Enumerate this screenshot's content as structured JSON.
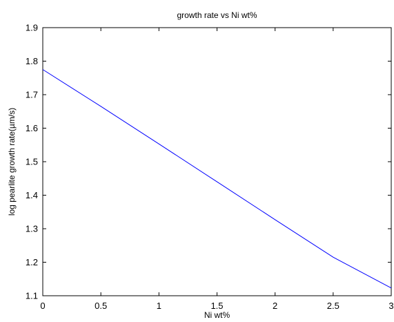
{
  "chart_data": {
    "type": "line",
    "title": "growth rate vs Ni wt%",
    "xlabel": "Ni wt%",
    "ylabel": "log pearlite growth rate(µm/s)",
    "xlim": [
      0,
      3
    ],
    "ylim": [
      1.1,
      1.9
    ],
    "x_ticks": [
      0,
      0.5,
      1,
      1.5,
      2,
      2.5,
      3
    ],
    "x_tick_labels": [
      "0",
      "0.5",
      "1",
      "1.5",
      "2",
      "2.5",
      "3"
    ],
    "y_ticks": [
      1.1,
      1.2,
      1.3,
      1.4,
      1.5,
      1.6,
      1.7,
      1.8,
      1.9
    ],
    "y_tick_labels": [
      "1.1",
      "1.2",
      "1.3",
      "1.4",
      "1.5",
      "1.6",
      "1.7",
      "1.8",
      "1.9"
    ],
    "grid": false,
    "line_color": "#0000ff",
    "series": [
      {
        "x": [
          0,
          0.5,
          1,
          1.5,
          2,
          2.5,
          3
        ],
        "values": [
          1.775,
          1.665,
          1.553,
          1.44,
          1.327,
          1.215,
          1.123
        ]
      }
    ]
  }
}
